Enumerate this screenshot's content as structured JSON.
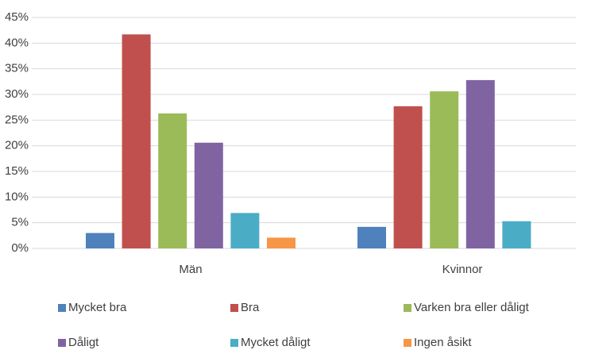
{
  "chart_data": {
    "type": "bar",
    "categories": [
      "Män",
      "Kvinnor"
    ],
    "series": [
      {
        "name": "Mycket bra",
        "color": "#4f81bd",
        "values": [
          3.0,
          4.2
        ]
      },
      {
        "name": "Bra",
        "color": "#c0504d",
        "values": [
          41.7,
          27.7
        ]
      },
      {
        "name": "Varken bra eller dåligt",
        "color": "#9bbb59",
        "values": [
          26.3,
          30.6
        ]
      },
      {
        "name": "Dåligt",
        "color": "#8064a2",
        "values": [
          20.6,
          32.8
        ]
      },
      {
        "name": "Mycket dåligt",
        "color": "#4bacc6",
        "values": [
          6.9,
          5.3
        ]
      },
      {
        "name": "Ingen åsikt",
        "color": "#f79646",
        "values": [
          2.1,
          0
        ]
      }
    ],
    "ylim": [
      0,
      45
    ],
    "yticks": [
      {
        "value": 0,
        "label": "0%"
      },
      {
        "value": 5,
        "label": "5%"
      },
      {
        "value": 10,
        "label": "10%"
      },
      {
        "value": 15,
        "label": "15%"
      },
      {
        "value": 20,
        "label": "20%"
      },
      {
        "value": 25,
        "label": "25%"
      },
      {
        "value": 30,
        "label": "30%"
      },
      {
        "value": 35,
        "label": "35%"
      },
      {
        "value": 40,
        "label": "40%"
      },
      {
        "value": 45,
        "label": "45%"
      }
    ],
    "grid": true,
    "legend": "bottom"
  }
}
